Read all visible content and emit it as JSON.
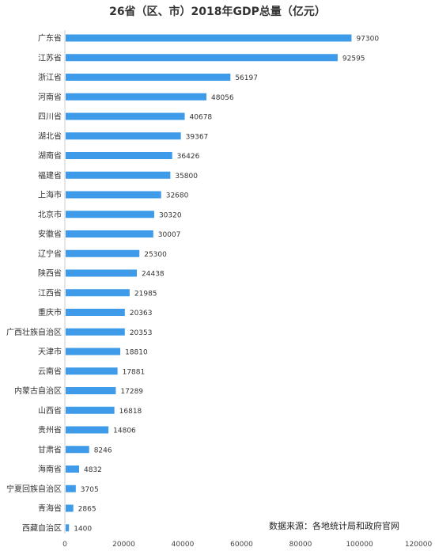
{
  "chart_data": {
    "type": "bar",
    "orientation": "horizontal",
    "title": "26省（区、市）2018年GDP总量（亿元）",
    "categories": [
      "广东省",
      "江苏省",
      "浙江省",
      "河南省",
      "四川省",
      "湖北省",
      "湖南省",
      "福建省",
      "上海市",
      "北京市",
      "安徽省",
      "辽宁省",
      "陕西省",
      "江西省",
      "重庆市",
      "广西壮族自治区",
      "天津市",
      "云南省",
      "内蒙古自治区",
      "山西省",
      "贵州省",
      "甘肃省",
      "海南省",
      "宁夏回族自治区",
      "青海省",
      "西藏自治区"
    ],
    "values": [
      97300,
      92595,
      56197,
      48056,
      40678,
      39367,
      36426,
      35800,
      32680,
      30320,
      30007,
      25300,
      24438,
      21985,
      20363,
      20353,
      18810,
      17881,
      17289,
      16818,
      14806,
      8246,
      4832,
      3705,
      2865,
      1400
    ],
    "xlim": [
      0,
      120000
    ],
    "xticks": [
      0,
      20000,
      40000,
      60000,
      80000,
      100000,
      120000
    ],
    "bar_color": "#3d9be9",
    "grid": false,
    "source_note": "数据来源：各地统计局和政府官网"
  }
}
